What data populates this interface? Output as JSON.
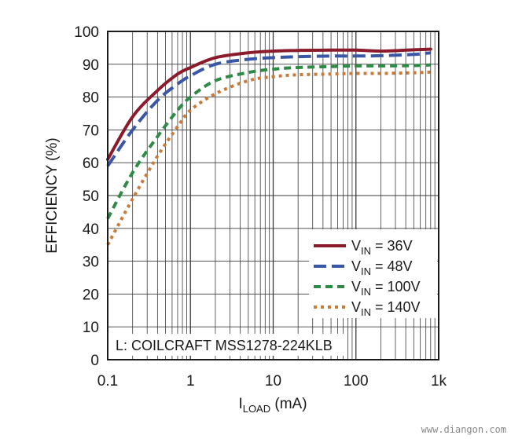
{
  "chart_data": {
    "type": "line",
    "title": "",
    "xlabel": "I",
    "xlabel_sub": "LOAD",
    "xlabel_unit": " (mA)",
    "ylabel": "EFFICIENCY (%)",
    "x_scale": "log",
    "xlim": [
      0.1,
      1000
    ],
    "ylim": [
      0,
      100
    ],
    "grid": true,
    "legend_position": "bottom-right",
    "x_ticks": [
      {
        "value": 0.1,
        "label": "0.1"
      },
      {
        "value": 1,
        "label": "1"
      },
      {
        "value": 10,
        "label": "10"
      },
      {
        "value": 100,
        "label": "100"
      },
      {
        "value": 1000,
        "label": "1k"
      }
    ],
    "y_ticks": [
      0,
      10,
      20,
      30,
      40,
      50,
      60,
      70,
      80,
      90,
      100
    ],
    "annotation": "L: COILCRAFT MSS1278-224KLB",
    "watermark": "www.diangon.com",
    "series": [
      {
        "name": "VIN = 36V",
        "legend_main": "V",
        "legend_sub": "IN",
        "legend_rest": " = 36V",
        "color": "#8b1a2b",
        "dash": "solid",
        "points": [
          [
            0.1,
            61
          ],
          [
            0.2,
            74
          ],
          [
            0.4,
            82
          ],
          [
            0.7,
            87
          ],
          [
            1,
            89
          ],
          [
            2,
            92
          ],
          [
            5,
            93.5
          ],
          [
            10,
            94
          ],
          [
            20,
            94.2
          ],
          [
            50,
            94.3
          ],
          [
            100,
            94.3
          ],
          [
            200,
            94
          ],
          [
            500,
            94.4
          ],
          [
            800,
            94.6
          ]
        ]
      },
      {
        "name": "VIN = 48V",
        "legend_main": "V",
        "legend_sub": "IN",
        "legend_rest": " = 48V",
        "color": "#3a56a6",
        "dash": "long-dash",
        "points": [
          [
            0.1,
            59
          ],
          [
            0.2,
            70
          ],
          [
            0.4,
            79
          ],
          [
            0.7,
            84
          ],
          [
            1,
            86.5
          ],
          [
            2,
            90
          ],
          [
            5,
            91.5
          ],
          [
            10,
            92
          ],
          [
            20,
            92.3
          ],
          [
            50,
            92.5
          ],
          [
            100,
            92.5
          ],
          [
            200,
            92.6
          ],
          [
            500,
            93
          ],
          [
            800,
            93.5
          ]
        ]
      },
      {
        "name": "VIN = 100V",
        "legend_main": "V",
        "legend_sub": "IN",
        "legend_rest": " = 100V",
        "color": "#2e8b45",
        "dash": "dash",
        "points": [
          [
            0.1,
            43
          ],
          [
            0.2,
            57
          ],
          [
            0.4,
            68
          ],
          [
            0.7,
            76
          ],
          [
            1,
            80
          ],
          [
            2,
            85
          ],
          [
            5,
            87.5
          ],
          [
            10,
            88.5
          ],
          [
            20,
            89
          ],
          [
            50,
            89.3
          ],
          [
            100,
            89.5
          ],
          [
            200,
            89.5
          ],
          [
            500,
            89.6
          ],
          [
            800,
            89.8
          ]
        ]
      },
      {
        "name": "VIN = 140V",
        "legend_main": "V",
        "legend_sub": "IN",
        "legend_rest": " = 140V",
        "color": "#c97b3a",
        "dash": "dot",
        "points": [
          [
            0.1,
            35
          ],
          [
            0.2,
            49
          ],
          [
            0.4,
            62
          ],
          [
            0.7,
            71
          ],
          [
            1,
            76
          ],
          [
            2,
            81
          ],
          [
            5,
            85
          ],
          [
            10,
            86.2
          ],
          [
            20,
            86.8
          ],
          [
            50,
            87
          ],
          [
            100,
            87.2
          ],
          [
            200,
            87.2
          ],
          [
            500,
            87.4
          ],
          [
            800,
            87.6
          ]
        ]
      }
    ]
  }
}
